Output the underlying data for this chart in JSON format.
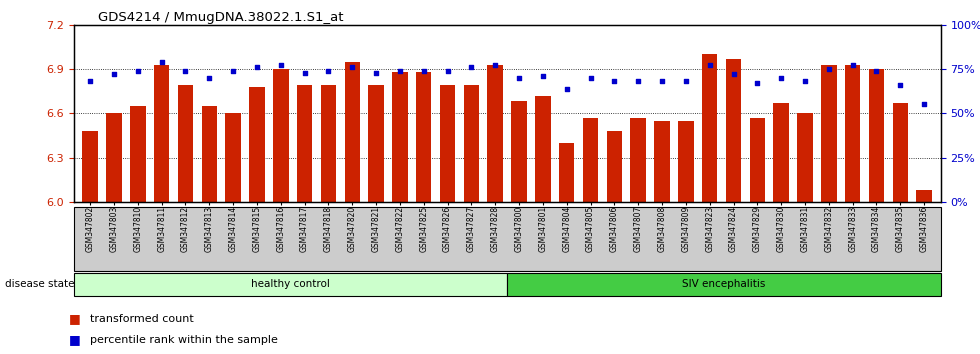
{
  "title": "GDS4214 / MmugDNA.38022.1.S1_at",
  "samples": [
    "GSM347802",
    "GSM347803",
    "GSM347810",
    "GSM347811",
    "GSM347812",
    "GSM347813",
    "GSM347814",
    "GSM347815",
    "GSM347816",
    "GSM347817",
    "GSM347818",
    "GSM347820",
    "GSM347821",
    "GSM347822",
    "GSM347825",
    "GSM347826",
    "GSM347827",
    "GSM347828",
    "GSM347800",
    "GSM347801",
    "GSM347804",
    "GSM347805",
    "GSM347806",
    "GSM347807",
    "GSM347808",
    "GSM347809",
    "GSM347823",
    "GSM347824",
    "GSM347829",
    "GSM347830",
    "GSM347831",
    "GSM347832",
    "GSM347833",
    "GSM347834",
    "GSM347835",
    "GSM347836"
  ],
  "bar_values": [
    6.48,
    6.6,
    6.65,
    6.93,
    6.79,
    6.65,
    6.6,
    6.78,
    6.9,
    6.79,
    6.79,
    6.95,
    6.79,
    6.88,
    6.88,
    6.79,
    6.79,
    6.93,
    6.68,
    6.72,
    6.4,
    6.57,
    6.48,
    6.57,
    6.55,
    6.55,
    7.0,
    6.97,
    6.57,
    6.67,
    6.6,
    6.93,
    6.93,
    6.9,
    6.67,
    6.08
  ],
  "dot_values_pct": [
    68,
    72,
    74,
    79,
    74,
    70,
    74,
    76,
    77,
    73,
    74,
    76,
    73,
    74,
    74,
    74,
    76,
    77,
    70,
    71,
    64,
    70,
    68,
    68,
    68,
    68,
    77,
    72,
    67,
    70,
    68,
    75,
    77,
    74,
    66,
    55
  ],
  "healthy_count": 18,
  "ylim_left": [
    6.0,
    7.2
  ],
  "ylim_right": [
    0,
    100
  ],
  "yticks_left": [
    6.0,
    6.3,
    6.6,
    6.9,
    7.2
  ],
  "yticks_right": [
    0,
    25,
    50,
    75,
    100
  ],
  "bar_color": "#cc2200",
  "dot_color": "#0000cc",
  "healthy_bg": "#ccffcc",
  "siv_bg": "#44cc44",
  "tick_area_bg": "#cccccc",
  "bar_bottom": 6.0,
  "legend_items": [
    "transformed count",
    "percentile rank within the sample"
  ]
}
